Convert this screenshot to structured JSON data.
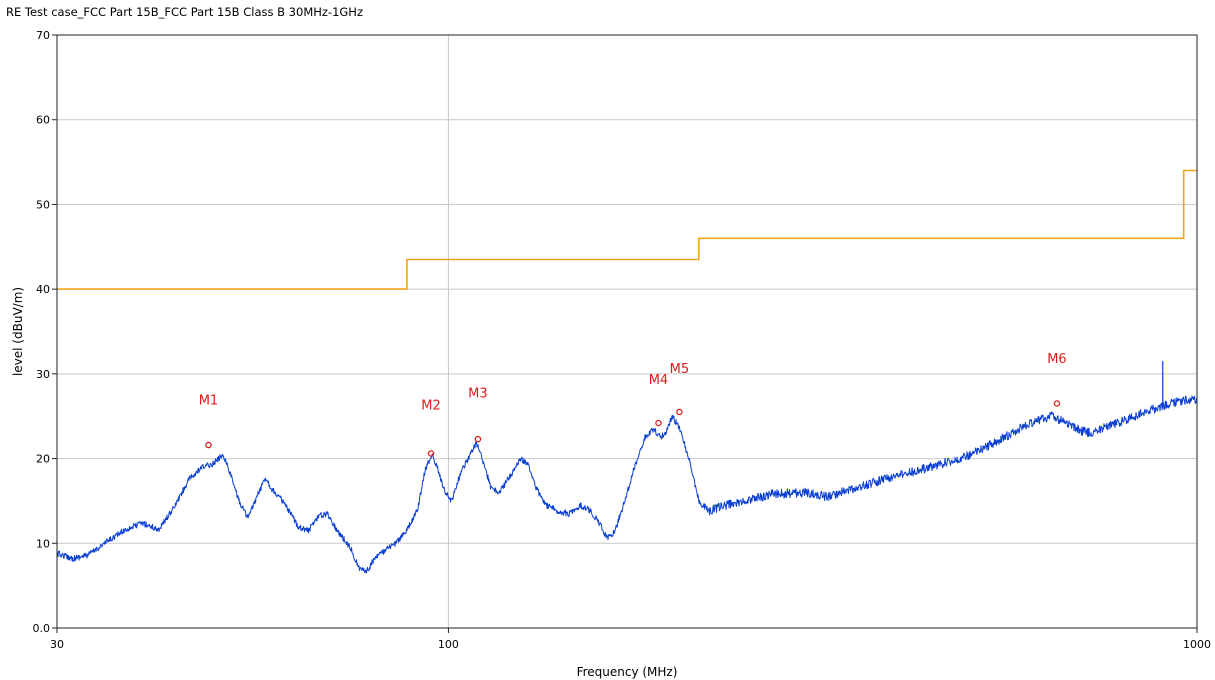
{
  "chart_data": {
    "type": "line",
    "title": "RE Test case_FCC Part 15B_FCC Part 15B  Class B 30MHz-1GHz",
    "xlabel": "Frequency (MHz)",
    "ylabel": "level (dBuV/m)",
    "x_scale": "log",
    "xlim": [
      30,
      1000
    ],
    "ylim": [
      0,
      70
    ],
    "x_ticks": [
      30,
      100,
      1000
    ],
    "x_tick_labels": [
      "30",
      "100",
      "1000"
    ],
    "y_ticks": [
      0,
      10,
      20,
      30,
      40,
      50,
      60,
      70
    ],
    "y_tick_labels": [
      "0.0",
      "10",
      "20",
      "30",
      "40",
      "50",
      "60",
      "70"
    ],
    "grid": true,
    "series": [
      {
        "role": "limit",
        "color": "#f5a31b",
        "points": [
          [
            30,
            40
          ],
          [
            88,
            40
          ],
          [
            88,
            43.5
          ],
          [
            216,
            43.5
          ],
          [
            216,
            46
          ],
          [
            960,
            46
          ],
          [
            960,
            54
          ],
          [
            1000,
            54
          ]
        ]
      },
      {
        "role": "measurement",
        "color": "#0a3fd1",
        "points": [
          [
            30,
            8.8
          ],
          [
            31.5,
            8.2
          ],
          [
            33,
            8.6
          ],
          [
            35,
            10.2
          ],
          [
            37,
            11.6
          ],
          [
            39,
            12.4
          ],
          [
            41,
            11.6
          ],
          [
            43,
            14.2
          ],
          [
            45,
            17.5
          ],
          [
            47,
            19.0
          ],
          [
            48.5,
            19.4
          ],
          [
            50,
            20.5
          ],
          [
            51,
            18.5
          ],
          [
            52.5,
            15.0
          ],
          [
            54,
            13.0
          ],
          [
            55.5,
            15.5
          ],
          [
            57,
            17.8
          ],
          [
            58,
            16.5
          ],
          [
            60,
            15.0
          ],
          [
            63,
            12.0
          ],
          [
            65,
            11.5
          ],
          [
            67,
            13.2
          ],
          [
            69,
            13.5
          ],
          [
            71,
            11.5
          ],
          [
            74,
            9.5
          ],
          [
            76,
            7.0
          ],
          [
            78,
            6.8
          ],
          [
            80,
            8.5
          ],
          [
            82,
            9.0
          ],
          [
            85,
            10.0
          ],
          [
            88,
            11.5
          ],
          [
            91,
            14.0
          ],
          [
            93,
            18.5
          ],
          [
            95,
            20.5
          ],
          [
            97,
            18.5
          ],
          [
            99,
            16.0
          ],
          [
            101,
            15.0
          ],
          [
            104,
            18.5
          ],
          [
            107,
            20.5
          ],
          [
            109,
            21.8
          ],
          [
            111,
            20.0
          ],
          [
            114,
            16.5
          ],
          [
            117,
            16.0
          ],
          [
            121,
            18.0
          ],
          [
            125,
            20.0
          ],
          [
            128,
            19.2
          ],
          [
            131,
            16.5
          ],
          [
            135,
            14.5
          ],
          [
            140,
            13.8
          ],
          [
            145,
            13.5
          ],
          [
            150,
            14.5
          ],
          [
            155,
            13.8
          ],
          [
            160,
            12.0
          ],
          [
            163,
            10.5
          ],
          [
            167,
            11.5
          ],
          [
            172,
            15.0
          ],
          [
            178,
            19.5
          ],
          [
            183,
            22.5
          ],
          [
            188,
            23.5
          ],
          [
            192,
            22.5
          ],
          [
            195,
            23.0
          ],
          [
            199,
            25.0
          ],
          [
            203,
            23.8
          ],
          [
            207,
            21.5
          ],
          [
            211,
            19.0
          ],
          [
            216,
            15.0
          ],
          [
            222,
            13.8
          ],
          [
            235,
            14.5
          ],
          [
            250,
            15.0
          ],
          [
            270,
            15.8
          ],
          [
            300,
            16.0
          ],
          [
            320,
            15.5
          ],
          [
            350,
            16.5
          ],
          [
            380,
            17.5
          ],
          [
            420,
            18.5
          ],
          [
            460,
            19.5
          ],
          [
            500,
            20.5
          ],
          [
            540,
            22.0
          ],
          [
            580,
            23.5
          ],
          [
            610,
            24.5
          ],
          [
            640,
            25.0
          ],
          [
            660,
            24.5
          ],
          [
            690,
            23.5
          ],
          [
            720,
            23.0
          ],
          [
            760,
            23.8
          ],
          [
            800,
            24.5
          ],
          [
            850,
            25.5
          ],
          [
            900,
            26.2
          ],
          [
            950,
            26.8
          ],
          [
            1000,
            27.0
          ]
        ]
      }
    ],
    "spur": {
      "x": 900,
      "y": 31.5
    },
    "markers": [
      {
        "label": "M1",
        "x": 47.8,
        "y": 21.6,
        "label_y": 26.4
      },
      {
        "label": "M2",
        "x": 94.8,
        "y": 20.6,
        "label_y": 25.8
      },
      {
        "label": "M3",
        "x": 109.5,
        "y": 22.3,
        "label_y": 27.2
      },
      {
        "label": "M4",
        "x": 190.8,
        "y": 24.2,
        "label_y": 28.8
      },
      {
        "label": "M5",
        "x": 203.5,
        "y": 25.5,
        "label_y": 30.1
      },
      {
        "label": "M6",
        "x": 650,
        "y": 26.5,
        "label_y": 31.3
      }
    ]
  }
}
